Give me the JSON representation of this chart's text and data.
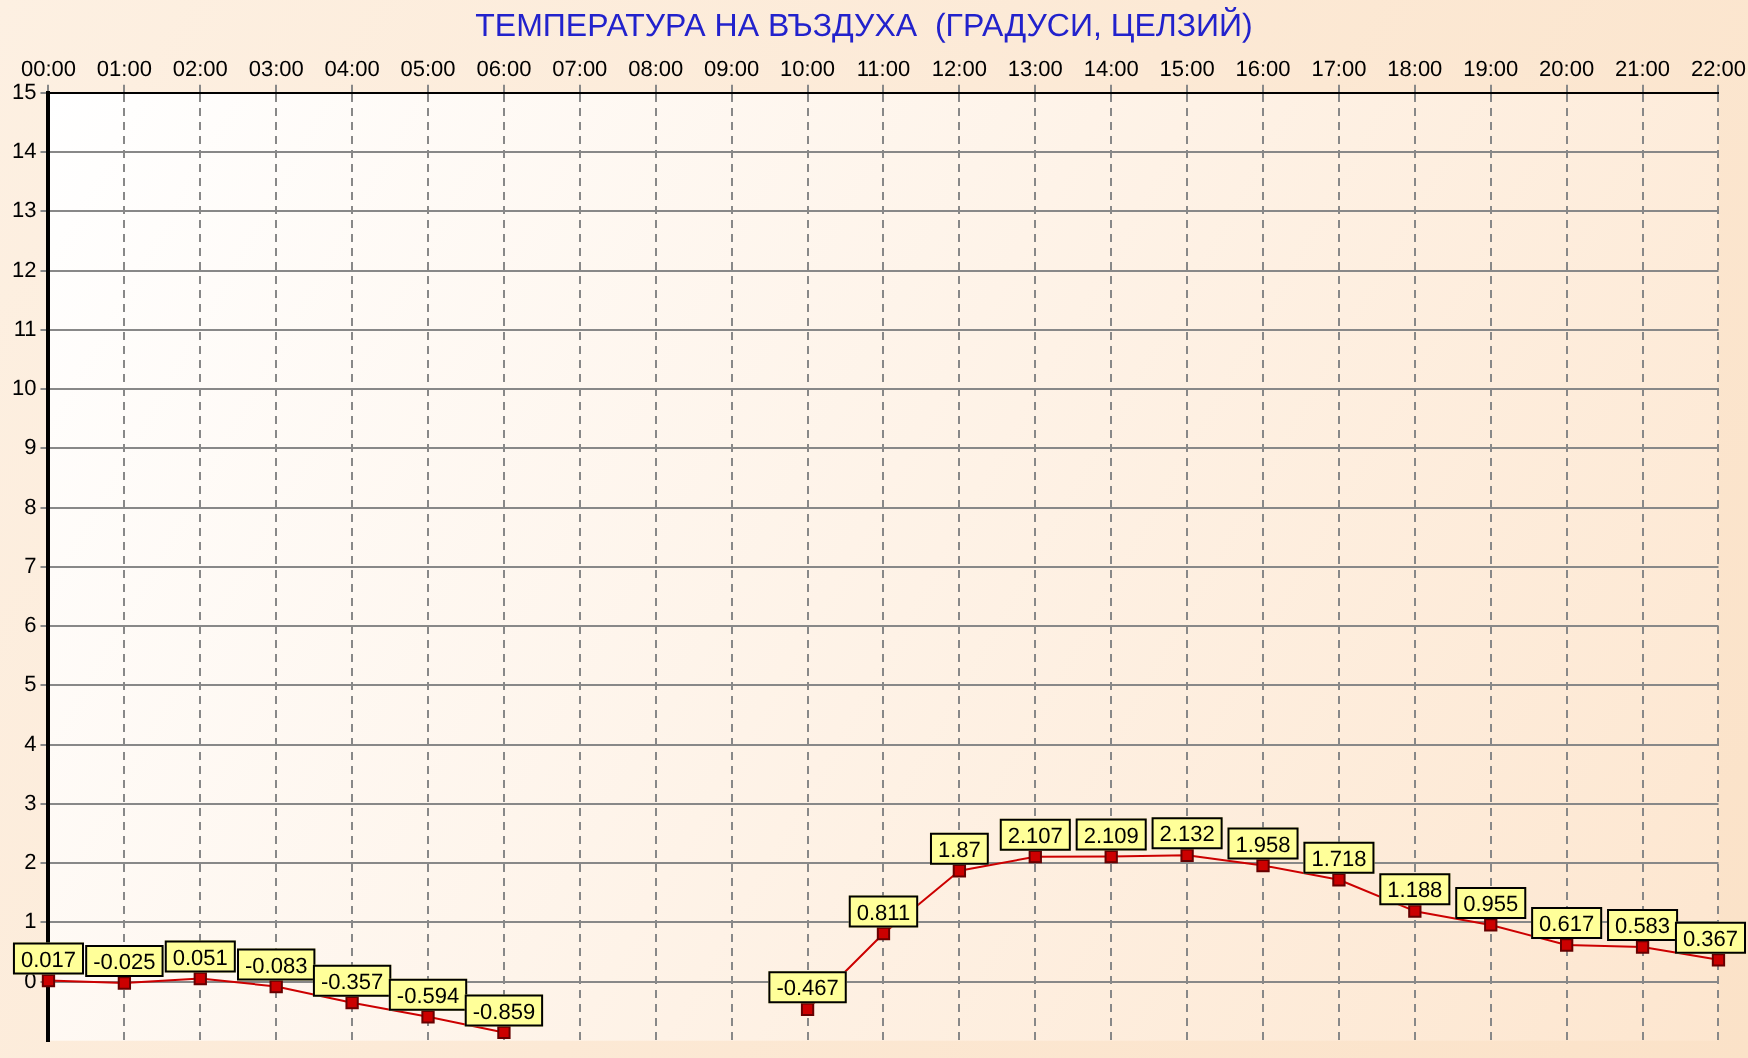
{
  "chart_data": {
    "type": "line",
    "title": "ТЕМПЕРАТУРА НА ВЪЗДУХА  (ГРАДУСИ, ЦЕЛЗИЙ)",
    "categories": [
      "00:00",
      "01:00",
      "02:00",
      "03:00",
      "04:00",
      "05:00",
      "06:00",
      "07:00",
      "08:00",
      "09:00",
      "10:00",
      "11:00",
      "12:00",
      "13:00",
      "14:00",
      "15:00",
      "16:00",
      "17:00",
      "18:00",
      "19:00",
      "20:00",
      "21:00",
      "22:00"
    ],
    "series": [
      {
        "color": "#cc0000",
        "values": [
          0.017,
          -0.025,
          0.051,
          -0.083,
          -0.357,
          -0.594,
          -0.859,
          null,
          null,
          null,
          -0.467,
          0.811,
          1.87,
          2.107,
          2.109,
          2.132,
          1.958,
          1.718,
          1.188,
          0.955,
          0.617,
          0.583,
          0.367
        ]
      }
    ],
    "ylim": [
      -1,
      15
    ],
    "yticks": [
      0,
      1,
      2,
      3,
      4,
      5,
      6,
      7,
      8,
      9,
      10,
      11,
      12,
      13,
      14,
      15
    ],
    "grid": true,
    "marker": "square",
    "line_style": "solid",
    "data_labels": true,
    "legend": false
  }
}
